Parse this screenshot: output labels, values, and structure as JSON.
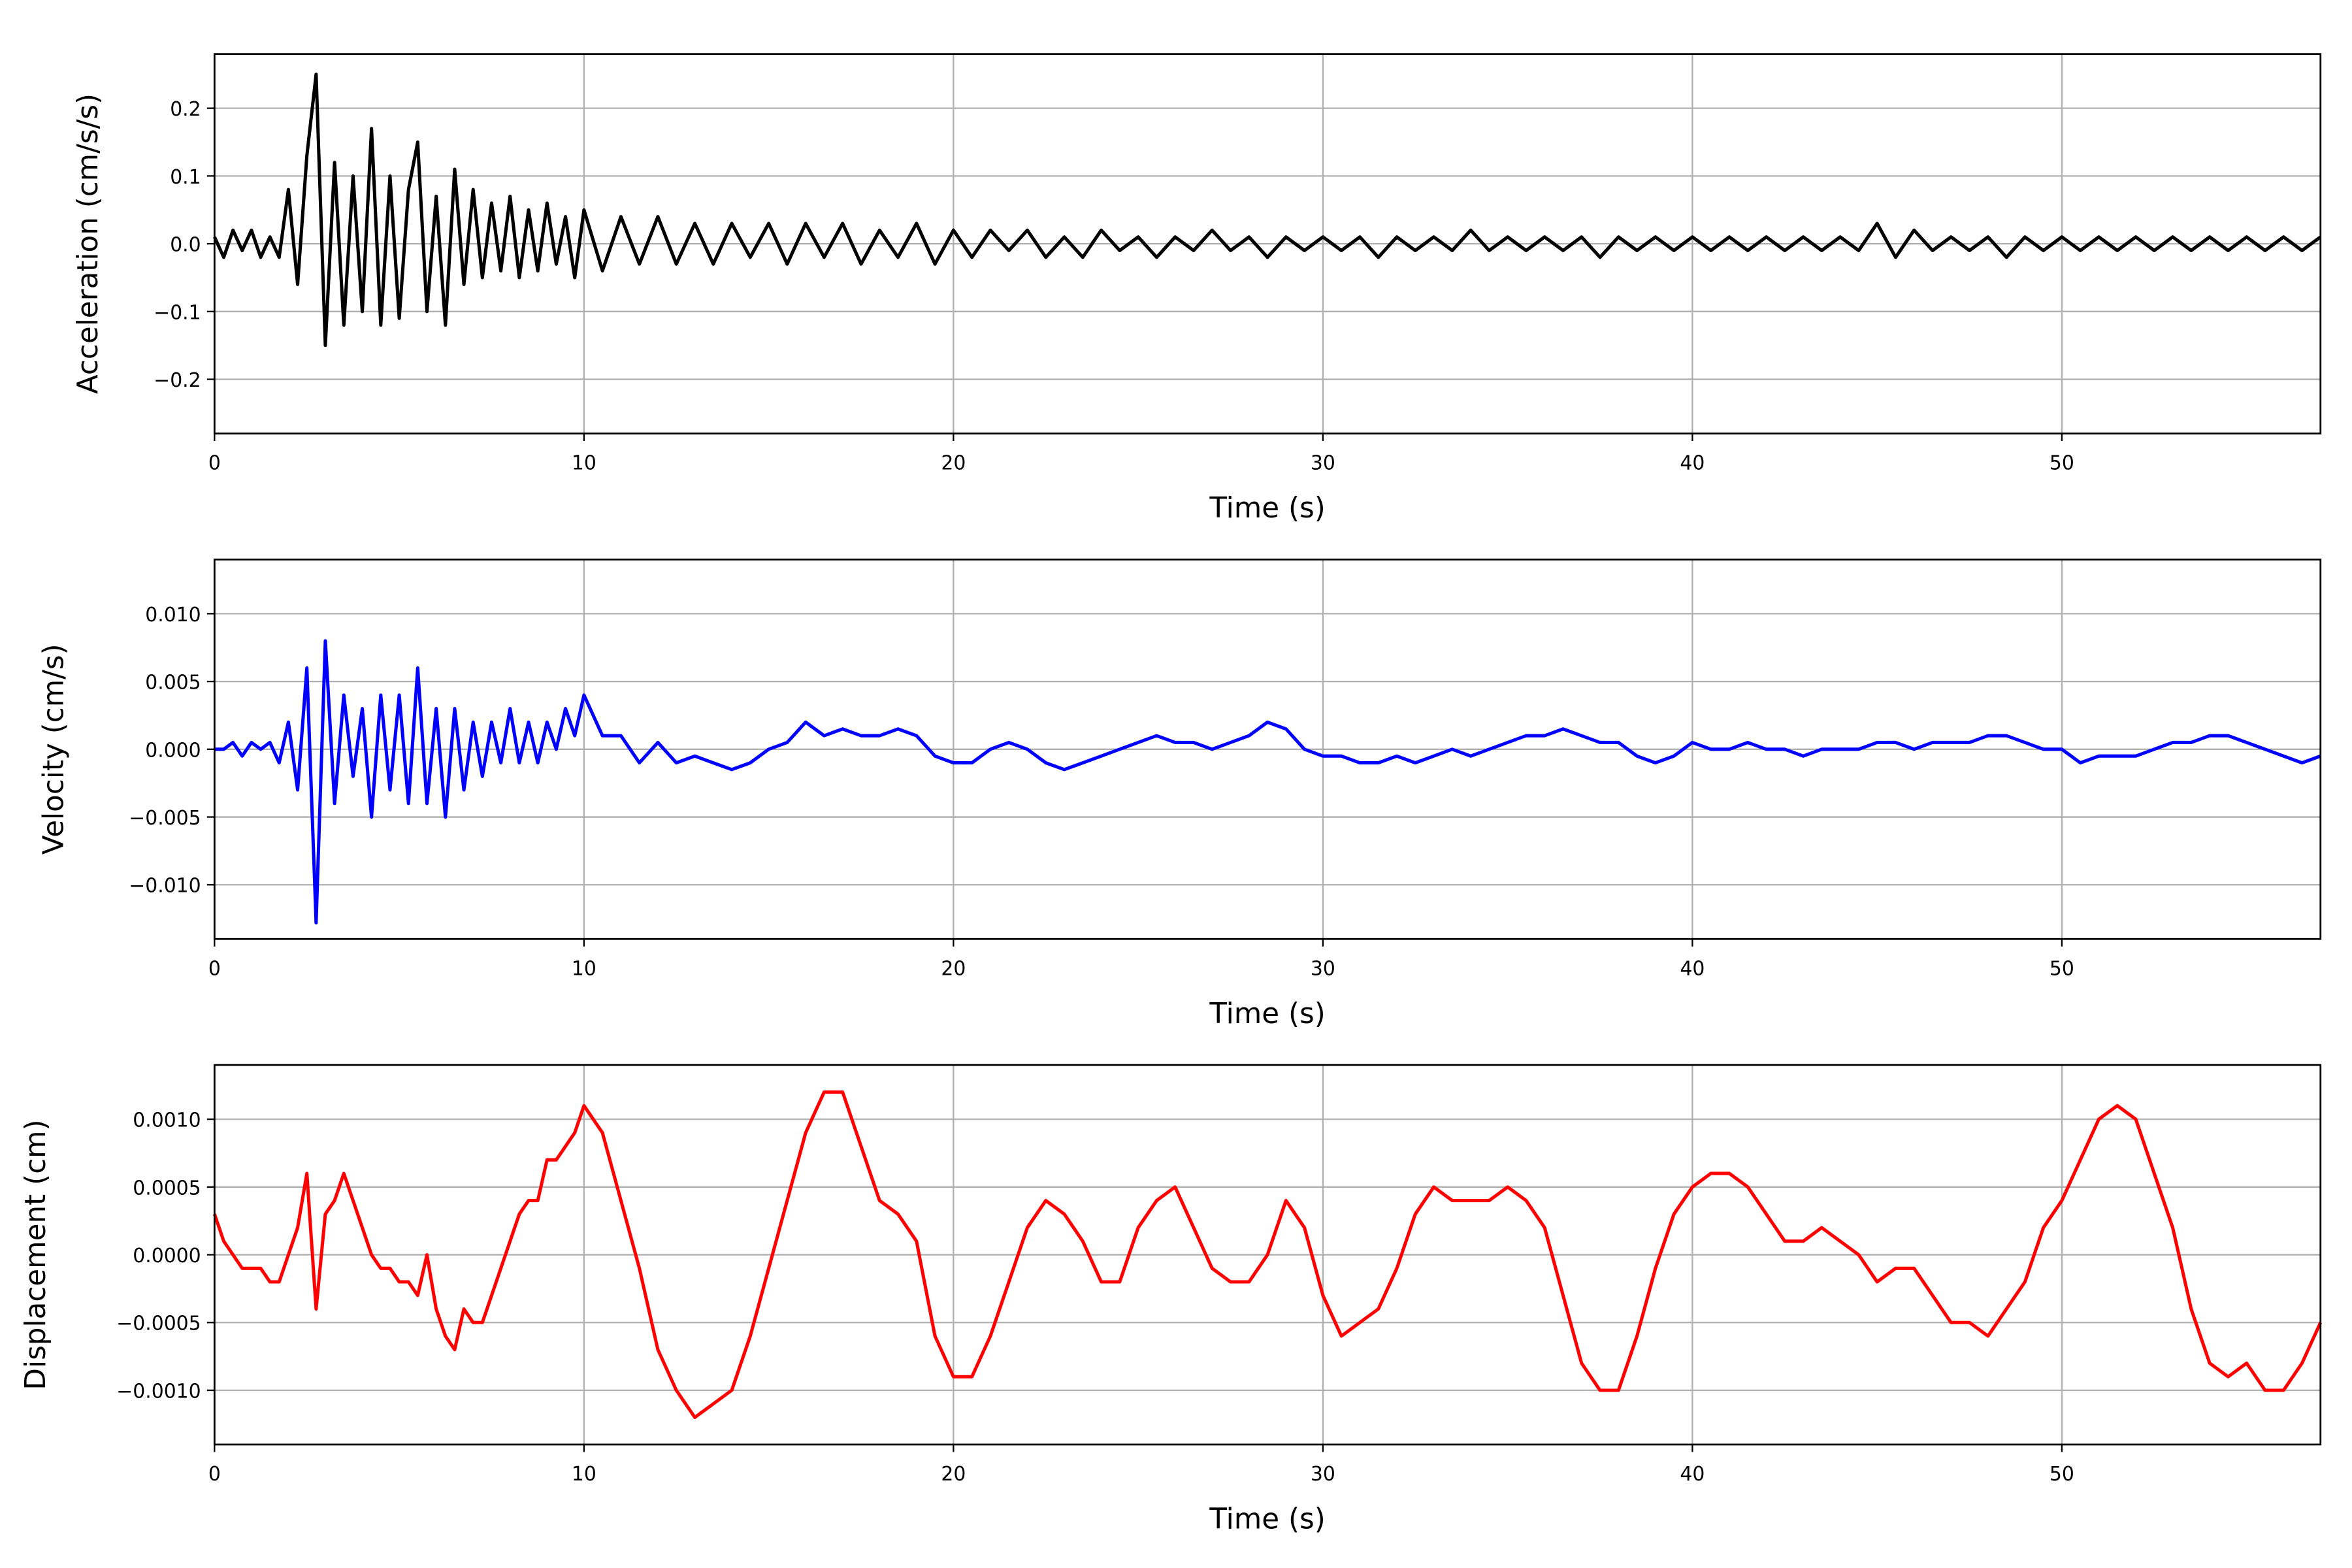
{
  "chart_data": [
    {
      "type": "line",
      "xlabel": "Time (s)",
      "ylabel": "Acceleration (cm/s/s)",
      "color": "#000000",
      "grid": true,
      "xlim": [
        0,
        57
      ],
      "xticks": [
        0,
        10,
        20,
        30,
        40,
        50
      ],
      "ylim": [
        -0.28,
        0.28
      ],
      "yticks": [
        {
          "value": -0.2,
          "label": "−0.2"
        },
        {
          "value": -0.1,
          "label": "−0.1"
        },
        {
          "value": 0,
          "label": "0.0"
        },
        0.1,
        0.2
      ],
      "x": [
        0,
        0.25,
        0.5,
        0.75,
        1,
        1.25,
        1.5,
        1.75,
        2,
        2.25,
        2.5,
        2.75,
        3,
        3.25,
        3.5,
        3.75,
        4,
        4.25,
        4.5,
        4.75,
        5,
        5.25,
        5.5,
        5.75,
        6,
        6.25,
        6.5,
        6.75,
        7,
        7.25,
        7.5,
        7.75,
        8,
        8.25,
        8.5,
        8.75,
        9,
        9.25,
        9.5,
        9.75,
        10,
        10.5,
        11,
        11.5,
        12,
        12.5,
        13,
        13.5,
        14,
        14.5,
        15,
        15.5,
        16,
        16.5,
        17,
        17.5,
        18,
        18.5,
        19,
        19.5,
        20,
        20.5,
        21,
        21.5,
        22,
        22.5,
        23,
        23.5,
        24,
        24.5,
        25,
        25.5,
        26,
        26.5,
        27,
        27.5,
        28,
        28.5,
        29,
        29.5,
        30,
        30.5,
        31,
        31.5,
        32,
        32.5,
        33,
        33.5,
        34,
        34.5,
        35,
        35.5,
        36,
        36.5,
        37,
        37.5,
        38,
        38.5,
        39,
        39.5,
        40,
        40.5,
        41,
        41.5,
        42,
        42.5,
        43,
        43.5,
        44,
        44.5,
        45,
        45.5,
        46,
        46.5,
        47,
        47.5,
        48,
        48.5,
        49,
        49.5,
        50,
        50.5,
        51,
        51.5,
        52,
        52.5,
        53,
        53.5,
        54,
        54.5,
        55,
        55.5,
        56,
        56.5,
        57
      ],
      "values": [
        0.01,
        -0.02,
        0.02,
        -0.01,
        0.02,
        -0.02,
        0.01,
        -0.02,
        0.08,
        -0.06,
        0.13,
        0.25,
        -0.15,
        0.12,
        -0.12,
        0.1,
        -0.1,
        0.17,
        -0.12,
        0.1,
        -0.11,
        0.08,
        0.15,
        -0.1,
        0.07,
        -0.12,
        0.11,
        -0.06,
        0.08,
        -0.05,
        0.06,
        -0.04,
        0.07,
        -0.05,
        0.05,
        -0.04,
        0.06,
        -0.03,
        0.04,
        -0.05,
        0.05,
        -0.04,
        0.04,
        -0.03,
        0.04,
        -0.03,
        0.03,
        -0.03,
        0.03,
        -0.02,
        0.03,
        -0.03,
        0.03,
        -0.02,
        0.03,
        -0.03,
        0.02,
        -0.02,
        0.03,
        -0.03,
        0.02,
        -0.02,
        0.02,
        -0.01,
        0.02,
        -0.02,
        0.01,
        -0.02,
        0.02,
        -0.01,
        0.01,
        -0.02,
        0.01,
        -0.01,
        0.02,
        -0.01,
        0.01,
        -0.02,
        0.01,
        -0.01,
        0.01,
        -0.01,
        0.01,
        -0.02,
        0.01,
        -0.01,
        0.01,
        -0.01,
        0.02,
        -0.01,
        0.01,
        -0.01,
        0.01,
        -0.01,
        0.01,
        -0.02,
        0.01,
        -0.01,
        0.01,
        -0.01,
        0.01,
        -0.01,
        0.01,
        -0.01,
        0.01,
        -0.01,
        0.01,
        -0.01,
        0.01,
        -0.01,
        0.03,
        -0.02,
        0.02,
        -0.01,
        0.01,
        -0.01,
        0.01,
        -0.02,
        0.01,
        -0.01,
        0.01,
        -0.01,
        0.01,
        -0.01,
        0.01,
        -0.01,
        0.01,
        -0.01,
        0.01,
        -0.01,
        0.01,
        -0.01,
        0.01,
        -0.01,
        0.01
      ]
    },
    {
      "type": "line",
      "xlabel": "Time (s)",
      "ylabel": "Velocity (cm/s)",
      "color": "#0000ff",
      "grid": true,
      "xlim": [
        0,
        57
      ],
      "xticks": [
        0,
        10,
        20,
        30,
        40,
        50
      ],
      "ylim": [
        -0.014,
        0.014
      ],
      "yticks": [
        {
          "value": -0.01,
          "label": "−0.010"
        },
        {
          "value": -0.005,
          "label": "−0.005"
        },
        {
          "value": 0,
          "label": "0.000"
        },
        {
          "value": 0.005,
          "label": "0.005"
        },
        {
          "value": 0.01,
          "label": "0.010"
        }
      ],
      "x": [
        0,
        0.25,
        0.5,
        0.75,
        1,
        1.25,
        1.5,
        1.75,
        2,
        2.25,
        2.5,
        2.75,
        3,
        3.25,
        3.5,
        3.75,
        4,
        4.25,
        4.5,
        4.75,
        5,
        5.25,
        5.5,
        5.75,
        6,
        6.25,
        6.5,
        6.75,
        7,
        7.25,
        7.5,
        7.75,
        8,
        8.25,
        8.5,
        8.75,
        9,
        9.25,
        9.5,
        9.75,
        10,
        10.5,
        11,
        11.5,
        12,
        12.5,
        13,
        13.5,
        14,
        14.5,
        15,
        15.5,
        16,
        16.5,
        17,
        17.5,
        18,
        18.5,
        19,
        19.5,
        20,
        20.5,
        21,
        21.5,
        22,
        22.5,
        23,
        23.5,
        24,
        24.5,
        25,
        25.5,
        26,
        26.5,
        27,
        27.5,
        28,
        28.5,
        29,
        29.5,
        30,
        30.5,
        31,
        31.5,
        32,
        32.5,
        33,
        33.5,
        34,
        34.5,
        35,
        35.5,
        36,
        36.5,
        37,
        37.5,
        38,
        38.5,
        39,
        39.5,
        40,
        40.5,
        41,
        41.5,
        42,
        42.5,
        43,
        43.5,
        44,
        44.5,
        45,
        45.5,
        46,
        46.5,
        47,
        47.5,
        48,
        48.5,
        49,
        49.5,
        50,
        50.5,
        51,
        51.5,
        52,
        52.5,
        53,
        53.5,
        54,
        54.5,
        55,
        55.5,
        56,
        56.5,
        57
      ],
      "values": [
        0,
        0,
        0.0005,
        -0.0005,
        0.0005,
        0,
        0.0005,
        -0.001,
        0.002,
        -0.003,
        0.006,
        -0.0128,
        0.008,
        -0.004,
        0.004,
        -0.002,
        0.003,
        -0.005,
        0.004,
        -0.003,
        0.004,
        -0.004,
        0.006,
        -0.004,
        0.003,
        -0.005,
        0.003,
        -0.003,
        0.002,
        -0.002,
        0.002,
        -0.001,
        0.003,
        -0.001,
        0.002,
        -0.001,
        0.002,
        0,
        0.003,
        0.001,
        0.004,
        0.001,
        0.001,
        -0.001,
        0.0005,
        -0.001,
        -0.0005,
        -0.001,
        -0.0015,
        -0.001,
        0,
        0.0005,
        0.002,
        0.001,
        0.0015,
        0.001,
        0.001,
        0.0015,
        0.001,
        -0.0005,
        -0.001,
        -0.001,
        0,
        0.0005,
        0,
        -0.001,
        -0.0015,
        -0.001,
        -0.0005,
        0,
        0.0005,
        0.001,
        0.0005,
        0.0005,
        0,
        0.0005,
        0.001,
        0.002,
        0.0015,
        0,
        -0.0005,
        -0.0005,
        -0.001,
        -0.001,
        -0.0005,
        -0.001,
        -0.0005,
        0,
        -0.0005,
        0,
        0.0005,
        0.001,
        0.001,
        0.0015,
        0.001,
        0.0005,
        0.0005,
        -0.0005,
        -0.001,
        -0.0005,
        0.0005,
        0,
        0,
        0.0005,
        0,
        0,
        -0.0005,
        0,
        0,
        0,
        0.0005,
        0.0005,
        0,
        0.0005,
        0.0005,
        0.0005,
        0.001,
        0.001,
        0.0005,
        0,
        0,
        -0.001,
        -0.0005,
        -0.0005,
        -0.0005,
        0,
        0.0005,
        0.0005,
        0.001,
        0.001,
        0.0005,
        0,
        -0.0005,
        -0.001,
        -0.0005
      ]
    },
    {
      "type": "line",
      "xlabel": "Time (s)",
      "ylabel": "Displacement (cm)",
      "color": "#ff0000",
      "grid": true,
      "xlim": [
        0,
        57
      ],
      "xticks": [
        0,
        10,
        20,
        30,
        40,
        50
      ],
      "ylim": [
        -0.0014,
        0.0014
      ],
      "yticks": [
        {
          "value": -0.001,
          "label": "−0.0010"
        },
        {
          "value": -0.0005,
          "label": "−0.0005"
        },
        {
          "value": 0,
          "label": "0.0000"
        },
        {
          "value": 0.0005,
          "label": "0.0005"
        },
        {
          "value": 0.001,
          "label": "0.0010"
        }
      ],
      "x": [
        0,
        0.25,
        0.5,
        0.75,
        1,
        1.25,
        1.5,
        1.75,
        2,
        2.25,
        2.5,
        2.75,
        3,
        3.25,
        3.5,
        3.75,
        4,
        4.25,
        4.5,
        4.75,
        5,
        5.25,
        5.5,
        5.75,
        6,
        6.25,
        6.5,
        6.75,
        7,
        7.25,
        7.5,
        7.75,
        8,
        8.25,
        8.5,
        8.75,
        9,
        9.25,
        9.5,
        9.75,
        10,
        10.5,
        11,
        11.5,
        12,
        12.5,
        13,
        13.5,
        14,
        14.5,
        15,
        15.5,
        16,
        16.5,
        17,
        17.5,
        18,
        18.5,
        19,
        19.5,
        20,
        20.5,
        21,
        21.5,
        22,
        22.5,
        23,
        23.5,
        24,
        24.5,
        25,
        25.5,
        26,
        26.5,
        27,
        27.5,
        28,
        28.5,
        29,
        29.5,
        30,
        30.5,
        31,
        31.5,
        32,
        32.5,
        33,
        33.5,
        34,
        34.5,
        35,
        35.5,
        36,
        36.5,
        37,
        37.5,
        38,
        38.5,
        39,
        39.5,
        40,
        40.5,
        41,
        41.5,
        42,
        42.5,
        43,
        43.5,
        44,
        44.5,
        45,
        45.5,
        46,
        46.5,
        47,
        47.5,
        48,
        48.5,
        49,
        49.5,
        50,
        50.5,
        51,
        51.5,
        52,
        52.5,
        53,
        53.5,
        54,
        54.5,
        55,
        55.5,
        56,
        56.5,
        57
      ],
      "values": [
        0.0003,
        0.0001,
        0,
        -0.0001,
        -0.0001,
        -0.0001,
        -0.0002,
        -0.0002,
        0,
        0.0002,
        0.0006,
        -0.0004,
        0.0003,
        0.0004,
        0.0006,
        0.0004,
        0.0002,
        0,
        -0.0001,
        -0.0001,
        -0.0002,
        -0.0002,
        -0.0003,
        0,
        -0.0004,
        -0.0006,
        -0.0007,
        -0.0004,
        -0.0005,
        -0.0005,
        -0.0003,
        -0.0001,
        0.0001,
        0.0003,
        0.0004,
        0.0004,
        0.0007,
        0.0007,
        0.0008,
        0.0009,
        0.0011,
        0.0009,
        0.0004,
        -0.0001,
        -0.0007,
        -0.001,
        -0.0012,
        -0.0011,
        -0.001,
        -0.0006,
        -0.0001,
        0.0004,
        0.0009,
        0.0012,
        0.0012,
        0.0008,
        0.0004,
        0.0003,
        0.0001,
        -0.0006,
        -0.0009,
        -0.0009,
        -0.0006,
        -0.0002,
        0.0002,
        0.0004,
        0.0003,
        0.0001,
        -0.0002,
        -0.0002,
        0.0002,
        0.0004,
        0.0005,
        0.0002,
        -0.0001,
        -0.0002,
        -0.0002,
        0,
        0.0004,
        0.0002,
        -0.0003,
        -0.0006,
        -0.0005,
        -0.0004,
        -0.0001,
        0.0003,
        0.0005,
        0.0004,
        0.0004,
        0.0004,
        0.0005,
        0.0004,
        0.0002,
        -0.0003,
        -0.0008,
        -0.001,
        -0.001,
        -0.0006,
        -0.0001,
        0.0003,
        0.0005,
        0.0006,
        0.0006,
        0.0005,
        0.0003,
        0.0001,
        0.0001,
        0.0002,
        0.0001,
        0,
        -0.0002,
        -0.0001,
        -0.0001,
        -0.0003,
        -0.0005,
        -0.0005,
        -0.0006,
        -0.0004,
        -0.0002,
        0.0002,
        0.0004,
        0.0007,
        0.001,
        0.0011,
        0.001,
        0.0006,
        0.0002,
        -0.0004,
        -0.0008,
        -0.0009,
        -0.0008,
        -0.001,
        -0.001,
        -0.0008,
        -0.0005
      ]
    }
  ]
}
